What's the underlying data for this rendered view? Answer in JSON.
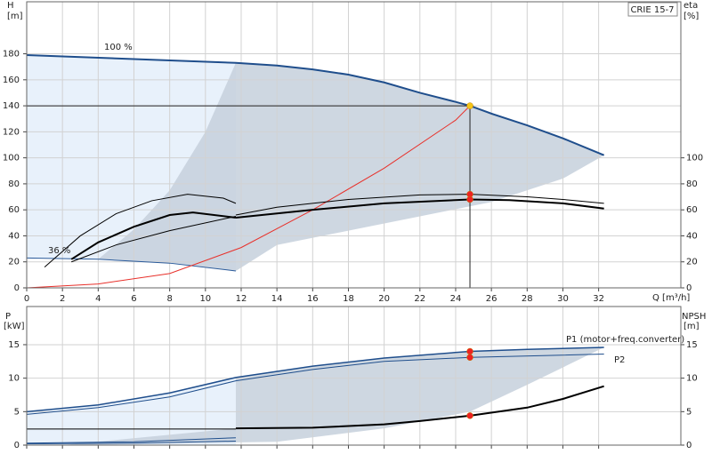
{
  "chart_data": [
    {
      "type": "line",
      "legend_title": "CRIE 15-7",
      "ylabel": "H",
      "ylabel_unit": "[m]",
      "y2label": "eta",
      "y2label_unit": "[%]",
      "xlabel": "Q [m³/h]",
      "xlim": [
        0,
        36.6
      ],
      "xticks": [
        0,
        2,
        4,
        6,
        8,
        10,
        12,
        14,
        16,
        18,
        20,
        22,
        24,
        26,
        28,
        30,
        32
      ],
      "ylim": [
        0,
        220
      ],
      "yticks": [
        0,
        20,
        40,
        60,
        80,
        100,
        120,
        140,
        160,
        180
      ],
      "y2lim": [
        0,
        220
      ],
      "y2ticks": [
        0,
        20,
        40,
        60,
        80,
        100
      ],
      "grid": true,
      "annotations": [
        "100 %",
        "36 %"
      ],
      "areas": [
        {
          "color": "#e4eefa",
          "x": [
            0,
            11.7,
            11.7,
            8,
            4,
            0
          ],
          "values": [
            179,
            173,
            13,
            19,
            22,
            23
          ]
        },
        {
          "color": "#c6d0dc",
          "x": [
            4,
            6,
            8,
            10,
            11.7,
            14,
            16,
            18,
            20,
            22,
            24,
            24.8,
            26,
            28,
            30,
            32.3,
            30,
            26,
            22,
            18,
            14,
            11.7,
            8
          ],
          "values": [
            22,
            45,
            75,
            120,
            173,
            171,
            168,
            164,
            158,
            150,
            143,
            140,
            134,
            125,
            115,
            102,
            84,
            66,
            55,
            44,
            33,
            13,
            19
          ]
        }
      ],
      "series": [
        {
          "color": "#1f4e8c",
          "linewidth": 2,
          "x": [
            0,
            11.7,
            14,
            16,
            18,
            20,
            22,
            24,
            24.8,
            26,
            28,
            30,
            32.3
          ],
          "values": [
            179,
            173,
            171,
            168,
            164,
            158,
            150,
            143,
            140,
            134,
            125,
            115,
            102
          ]
        },
        {
          "color": "#2a5a9a",
          "linewidth": 1,
          "x": [
            0,
            4,
            8,
            11.7
          ],
          "values": [
            23,
            22,
            19,
            13
          ]
        },
        {
          "color": "#e8302a",
          "linewidth": 1,
          "x": [
            0,
            4,
            8,
            12,
            16,
            20,
            24,
            24.8
          ],
          "values": [
            0,
            3,
            11,
            31,
            60,
            92,
            129,
            140
          ]
        },
        {
          "color": "#000000",
          "linewidth": 1,
          "axis": "y2",
          "x": [
            1,
            3,
            5,
            7,
            9,
            11,
            11.7
          ],
          "values": [
            16,
            40,
            57,
            67,
            72,
            69,
            65
          ]
        },
        {
          "color": "#000000",
          "linewidth": 2,
          "axis": "y2",
          "x": [
            2.5,
            4,
            6,
            8,
            9.3,
            11.7
          ],
          "values": [
            22,
            35,
            47,
            56,
            58,
            54
          ]
        },
        {
          "color": "#000000",
          "linewidth": 1,
          "axis": "y2",
          "x": [
            2.5,
            5,
            8,
            11.7
          ],
          "values": [
            20,
            33,
            44,
            55
          ]
        },
        {
          "color": "#000000",
          "linewidth": 1,
          "axis": "y2",
          "x": [
            11.7,
            14,
            18,
            22,
            24.8,
            28,
            30,
            32.3
          ],
          "values": [
            56,
            62,
            68,
            71.5,
            72,
            70,
            68,
            65
          ]
        },
        {
          "color": "#000000",
          "linewidth": 2,
          "axis": "y2",
          "x": [
            11.7,
            16,
            20,
            24.8,
            27,
            30,
            32.3
          ],
          "values": [
            54,
            60,
            65,
            68,
            67.5,
            65,
            61
          ]
        }
      ],
      "points": [
        {
          "x": 24.8,
          "y": 140,
          "color": "#f5c518",
          "guides": true
        },
        {
          "x": 24.8,
          "y": 72,
          "color": "#ee2222",
          "axis": "y2"
        },
        {
          "x": 24.8,
          "y": 68,
          "color": "#ee2222",
          "axis": "y2"
        }
      ]
    },
    {
      "type": "line",
      "ylabel": "P",
      "ylabel_unit": "[kW]",
      "y2label": "NPSH",
      "y2label_unit": "[m]",
      "xlim": [
        0,
        36.6
      ],
      "xticks": [
        0,
        2,
        4,
        6,
        8,
        10,
        12,
        14,
        16,
        18,
        20,
        22,
        24,
        26,
        28,
        30,
        32
      ],
      "show_xtick_labels": false,
      "ylim": [
        0,
        20.7
      ],
      "yticks": [
        0,
        5,
        10,
        15
      ],
      "y2lim": [
        0,
        20.7
      ],
      "y2ticks": [
        0,
        5,
        10,
        15
      ],
      "grid": true,
      "annotations": [
        "P1 (motor+freq.converter)",
        "P2"
      ],
      "areas": [
        {
          "color": "#e4eefa",
          "x": [
            0,
            4,
            8,
            11.7,
            11.7,
            0
          ],
          "values": [
            5,
            6,
            7.8,
            10.1,
            0,
            0
          ]
        },
        {
          "color": "#c6d0dc",
          "x": [
            2,
            11.7,
            11.7,
            16,
            20,
            24.8,
            28,
            32.3,
            28,
            24.8,
            20,
            14
          ],
          "values": [
            0,
            2.5,
            10.2,
            11.8,
            13,
            14,
            14.3,
            14.6,
            9,
            5,
            2.5,
            0.5
          ]
        }
      ],
      "series": [
        {
          "color": "#1f4e8c",
          "linewidth": 1.5,
          "x": [
            0,
            4,
            8,
            11.7,
            16,
            20,
            24.8,
            28,
            32.3
          ],
          "values": [
            5,
            6,
            7.8,
            10.1,
            11.8,
            13,
            14,
            14.3,
            14.6
          ]
        },
        {
          "color": "#1f4e8c",
          "linewidth": 1,
          "x": [
            0,
            4,
            8,
            11.7,
            16,
            20,
            24.8,
            32.3
          ],
          "values": [
            4.6,
            5.6,
            7.2,
            9.6,
            11.3,
            12.5,
            13.1,
            13.6
          ]
        },
        {
          "color": "#1f4e8c",
          "linewidth": 1,
          "x": [
            0,
            6,
            11.7
          ],
          "values": [
            0.3,
            0.5,
            1.1
          ]
        },
        {
          "color": "#1f4e8c",
          "linewidth": 1,
          "x": [
            0,
            6,
            11.7
          ],
          "values": [
            0.2,
            0.3,
            0.6
          ]
        },
        {
          "color": "#000000",
          "linewidth": 1,
          "axis": "y2",
          "x": [
            0,
            11.7
          ],
          "values": [
            2.4,
            2.4
          ]
        },
        {
          "color": "#000000",
          "linewidth": 2,
          "axis": "y2",
          "x": [
            11.7,
            16,
            20,
            22,
            24.8,
            28,
            30,
            32.3
          ],
          "values": [
            2.5,
            2.6,
            3.1,
            3.6,
            4.4,
            5.6,
            6.9,
            8.8
          ]
        }
      ],
      "points": [
        {
          "x": 24.8,
          "y": 14,
          "color": "#ee2222"
        },
        {
          "x": 24.8,
          "y": 13.1,
          "color": "#ee2222"
        },
        {
          "x": 24.8,
          "y": 4.4,
          "color": "#ee2222",
          "axis": "y2"
        }
      ]
    }
  ]
}
